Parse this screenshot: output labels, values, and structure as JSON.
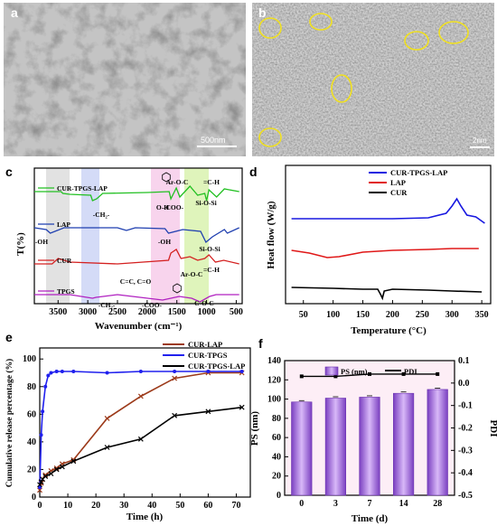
{
  "panels": {
    "a": {
      "label": "a",
      "scale_bar": "500nm"
    },
    "b": {
      "label": "b",
      "scale_bar": "2nm"
    },
    "c": {
      "label": "c"
    },
    "d": {
      "label": "d"
    },
    "e": {
      "label": "e"
    },
    "f": {
      "label": "f"
    }
  },
  "colors": {
    "cur_tpgs_lap_ftir": "#22c022",
    "lap": "#1f3fb0",
    "cur": "#d42020",
    "tpgs": "#b020c0",
    "dsc_blue": "#1818e0",
    "dsc_red": "#e01818",
    "release_lap": "#9c3a1a",
    "release_tpgs": "#2020ee",
    "release_mix": "#000000",
    "bar": "#9a5fd6",
    "ellipse": "#f0e020"
  },
  "chart_data": [
    {
      "panel": "c",
      "type": "line",
      "xlabel": "Wavenumber (cm⁻¹)",
      "ylabel": "T(%)",
      "xticks": [
        "3500",
        "3000",
        "2500",
        "2000",
        "1500",
        "1000",
        "500"
      ],
      "xlim": [
        3900,
        400
      ],
      "series": [
        {
          "name": "CUR-TPGS-LAP"
        },
        {
          "name": "LAP"
        },
        {
          "name": "CUR"
        },
        {
          "name": "TPGS"
        }
      ],
      "annotations": [
        "-CH₂-",
        "O-H",
        "-COO-",
        "Ar-O-C",
        "=C-H",
        "Si-O-Si",
        "-OH",
        "-OH",
        "Si-O-Si",
        "C=C, C=O",
        "Ar-O-C",
        "=C-H",
        "-CH₂-",
        "-COO-",
        "C-O-C"
      ]
    },
    {
      "panel": "d",
      "type": "line",
      "xlabel": "Temperature (°C)",
      "ylabel": "Heat flow (W/g)",
      "xticks": [
        50,
        100,
        150,
        200,
        250,
        300,
        350
      ],
      "xlim": [
        20,
        365
      ],
      "series": [
        {
          "name": "CUR-TPGS-LAP"
        },
        {
          "name": "LAP"
        },
        {
          "name": "CUR"
        }
      ]
    },
    {
      "panel": "e",
      "type": "line",
      "xlabel": "Time (h)",
      "ylabel": "Cumulative release percentage (%)",
      "xlim": [
        0,
        75
      ],
      "ylim": [
        0,
        100
      ],
      "xticks": [
        0,
        10,
        20,
        30,
        40,
        50,
        60,
        70
      ],
      "yticks": [
        0,
        20,
        40,
        60,
        80,
        100
      ],
      "series": [
        {
          "name": "CUR-LAP",
          "x": [
            0,
            0.5,
            1,
            2,
            4,
            6,
            8,
            12,
            24,
            36,
            48,
            60,
            72
          ],
          "y": [
            5,
            10,
            13,
            16,
            19,
            21,
            24,
            27,
            57,
            73,
            86,
            90,
            90
          ]
        },
        {
          "name": "CUR-TPGS",
          "x": [
            0,
            0.5,
            1,
            2,
            3,
            4,
            6,
            8,
            12,
            24,
            36,
            48,
            60,
            72
          ],
          "y": [
            7,
            45,
            62,
            80,
            88,
            90,
            91,
            91,
            91,
            90,
            91,
            91,
            91,
            91
          ]
        },
        {
          "name": "CUR-TPGS-LAP",
          "x": [
            0,
            0.5,
            1,
            2,
            4,
            6,
            8,
            12,
            24,
            36,
            48,
            60,
            72
          ],
          "y": [
            9,
            11,
            13,
            15,
            17,
            20,
            22,
            26,
            36,
            42,
            59,
            62,
            65
          ]
        }
      ]
    },
    {
      "panel": "f",
      "type": "bar",
      "xlabel": "Time (d)",
      "ylabel": "PS (nm)",
      "y2label": "PDI",
      "categories": [
        "0",
        "3",
        "7",
        "14",
        "28"
      ],
      "ylim": [
        0,
        140
      ],
      "yticks": [
        0,
        20,
        40,
        60,
        80,
        100,
        120,
        140
      ],
      "y2lim": [
        -0.5,
        0.1
      ],
      "y2ticks": [
        "0.1",
        "0.0",
        "-0.1",
        "-0.2",
        "-0.3",
        "-0.4",
        "-0.5"
      ],
      "series": [
        {
          "name": "PS (nm)",
          "values": [
            97,
            101,
            102,
            106,
            110
          ]
        },
        {
          "name": "PDI",
          "values": [
            0.03,
            0.03,
            0.04,
            0.04,
            0.04
          ]
        }
      ]
    }
  ]
}
